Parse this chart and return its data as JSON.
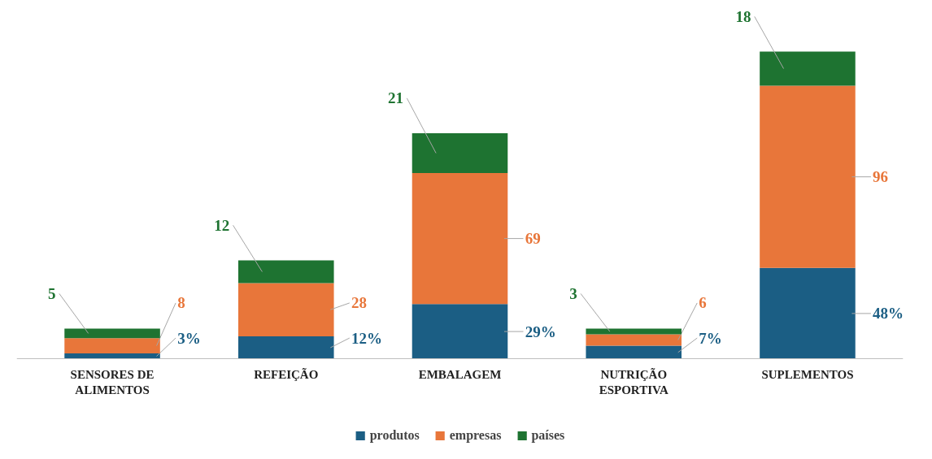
{
  "chart_data": {
    "type": "bar",
    "stacked": true,
    "categories": [
      "SENSORES DE\nALIMENTOS",
      "REFEIÇÃO",
      "EMBALAGEM",
      "NUTRIÇÃO\nESPORTIVA",
      "SUPLEMENTOS"
    ],
    "series": [
      {
        "name": "produtos",
        "color": "#1b5e84",
        "values": [
          3,
          12,
          29,
          7,
          48
        ],
        "value_labels": [
          "3%",
          "12%",
          "29%",
          "7%",
          "48%"
        ]
      },
      {
        "name": "empresas",
        "color": "#e8763a",
        "values": [
          8,
          28,
          69,
          6,
          96
        ],
        "value_labels": [
          "8",
          "28",
          "69",
          "6",
          "96"
        ]
      },
      {
        "name": "países",
        "color": "#1e7331",
        "values": [
          5,
          12,
          21,
          3,
          18
        ],
        "value_labels": [
          "5",
          "12",
          "21",
          "3",
          "18"
        ]
      }
    ],
    "data_labels": true,
    "legend": "bottom",
    "grid": false
  }
}
